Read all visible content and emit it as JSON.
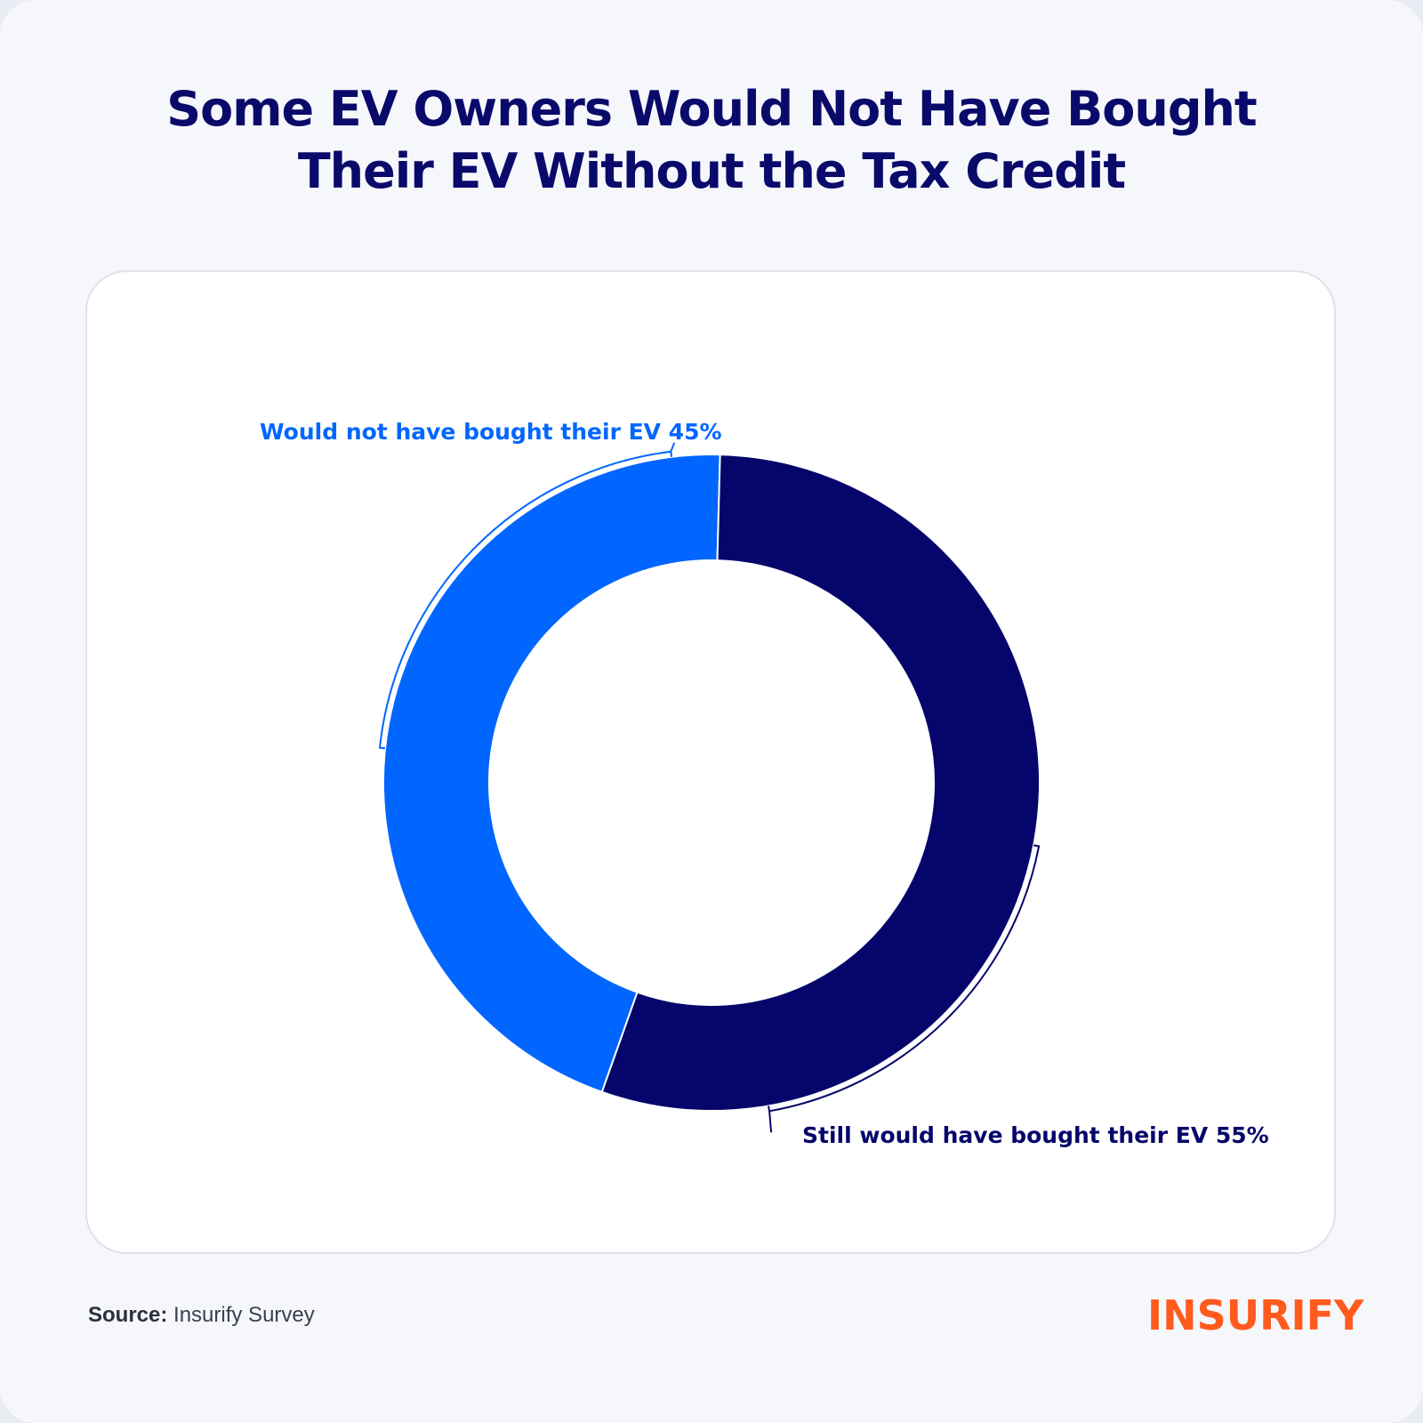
{
  "title": {
    "line1": "Some EV Owners Would Not Have Bought",
    "line2": "Their EV Without the Tax Credit"
  },
  "chart_data": {
    "type": "pie",
    "donut": true,
    "slices": [
      {
        "label": "Would not have bought their EV 45%",
        "value": 45,
        "color": "#0066ff"
      },
      {
        "label": "Still would have bought their EV 55%",
        "value": 55,
        "color": "#05056b"
      }
    ],
    "legend": "none"
  },
  "footer": {
    "source_label": "Source:",
    "source_text": "Insurify Survey"
  },
  "logo": {
    "text": "INSURIFY",
    "color": "#ff5b1f"
  }
}
